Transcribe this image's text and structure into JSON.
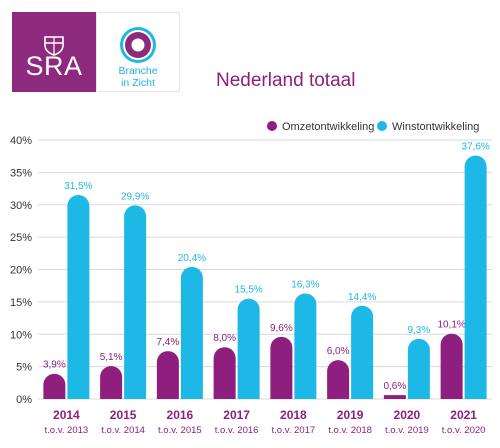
{
  "logos": {
    "sra_text": "SRA",
    "branche_line1": "Branche",
    "branche_line2": "in Zicht"
  },
  "colors": {
    "omzet": "#8e1f7e",
    "winst": "#1eb8e6",
    "axis_text": "#333333",
    "grid": "#d9d9d9"
  },
  "chart_data": {
    "type": "bar",
    "title": "Nederland totaal",
    "categories": [
      "2014",
      "2015",
      "2016",
      "2017",
      "2018",
      "2019",
      "2020",
      "2021"
    ],
    "sublabels": [
      "t.o.v. 2013",
      "t.o.v. 2014",
      "t.o.v. 2015",
      "t.o.v. 2016",
      "t.o.v. 2017",
      "t.o.v. 2018",
      "t.o.v. 2019",
      "t.o.v. 2020"
    ],
    "series": [
      {
        "name": "Omzetontwikkeling",
        "values": [
          3.9,
          5.1,
          7.4,
          8.0,
          9.6,
          6.0,
          0.6,
          10.1
        ],
        "labels": [
          "3,9%",
          "5,1%",
          "7,4%",
          "8,0%",
          "9,6%",
          "6,0%",
          "0,6%",
          "10,1%"
        ]
      },
      {
        "name": "Winstontwikkeling",
        "values": [
          31.5,
          29.9,
          20.4,
          15.5,
          16.3,
          14.4,
          9.3,
          37.6
        ],
        "labels": [
          "31,5%",
          "29,9%",
          "20,4%",
          "15,5%",
          "16,3%",
          "14,4%",
          "9,3%",
          "37,6%"
        ]
      }
    ],
    "ylim": [
      0,
      40
    ],
    "yticks": [
      0,
      5,
      10,
      15,
      20,
      25,
      30,
      35,
      40
    ],
    "ytick_labels": [
      "0%",
      "5%",
      "10%",
      "15%",
      "20%",
      "25%",
      "30%",
      "35%",
      "40%"
    ],
    "grid": true,
    "legend_position": "top-right"
  }
}
